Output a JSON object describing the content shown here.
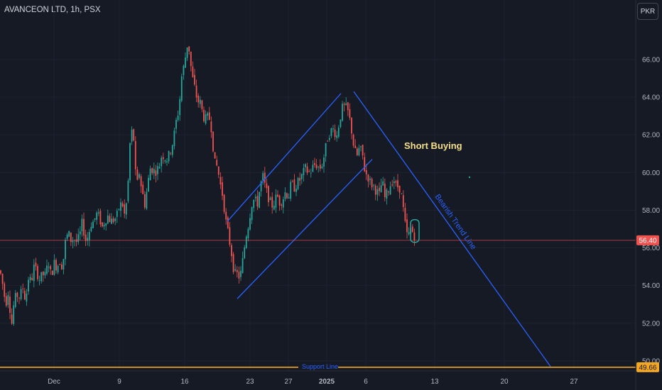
{
  "header": {
    "title": "AVANCEON LTD, 1h, PSX",
    "currency_button": "PKR"
  },
  "annotations": {
    "short_buying": "Short Buying",
    "bearish_trend_line": "Bearish Trend Line",
    "support_line": "Support Line"
  },
  "price_badges": {
    "last_price": "56.40",
    "support_price": "49.66"
  },
  "colors": {
    "background": "#161a25",
    "up": "#26a69a",
    "down": "#ef5350",
    "trend": "#2962ff",
    "support": "#f5a623",
    "text_yellow": "#f5e08a"
  },
  "chart_data": {
    "type": "candlestick",
    "symbol": "AVANCEON LTD",
    "interval": "1h",
    "exchange": "PSX",
    "currency": "PKR",
    "ylim": [
      49.3,
      68.5
    ],
    "y_ticks": [
      50,
      52,
      54,
      56,
      58,
      60,
      62,
      64,
      66
    ],
    "y_tick_labels": [
      "50.00",
      "52.00",
      "54.00",
      "56.00",
      "58.00",
      "60.00",
      "62.00",
      "64.00",
      "66.00"
    ],
    "x_tick_labels": [
      "Dec",
      "9",
      "16",
      "23",
      "27",
      "2025",
      "6",
      "13",
      "20",
      "27"
    ],
    "last_price": 56.4,
    "support_level": 49.66,
    "price_path": [
      [
        0,
        54.8
      ],
      [
        4,
        54.0
      ],
      [
        8,
        53.0
      ],
      [
        12,
        53.8
      ],
      [
        16,
        51.8
      ],
      [
        20,
        53.2
      ],
      [
        24,
        53.5
      ],
      [
        28,
        53.4
      ],
      [
        32,
        53.9
      ],
      [
        36,
        53.2
      ],
      [
        40,
        54.4
      ],
      [
        44,
        54.2
      ],
      [
        48,
        55.0
      ],
      [
        52,
        54.7
      ],
      [
        56,
        54.3
      ],
      [
        60,
        54.6
      ],
      [
        64,
        54.5
      ],
      [
        68,
        55.3
      ],
      [
        72,
        54.5
      ],
      [
        76,
        55.2
      ],
      [
        80,
        55.0
      ],
      [
        84,
        55.3
      ],
      [
        88,
        55.0
      ],
      [
        92,
        56.3
      ],
      [
        96,
        56.8
      ],
      [
        100,
        56.4
      ],
      [
        104,
        56.5
      ],
      [
        108,
        56.3
      ],
      [
        112,
        56.6
      ],
      [
        116,
        57.4
      ],
      [
        120,
        56.4
      ],
      [
        124,
        56.6
      ],
      [
        128,
        57.3
      ],
      [
        132,
        57.4
      ],
      [
        136,
        57.8
      ],
      [
        140,
        57.6
      ],
      [
        144,
        57.1
      ],
      [
        148,
        57.5
      ],
      [
        152,
        57.7
      ],
      [
        156,
        57.4
      ],
      [
        160,
        57.5
      ],
      [
        164,
        57.6
      ],
      [
        168,
        58.2
      ],
      [
        172,
        58.4
      ],
      [
        176,
        57.6
      ],
      [
        180,
        59.2
      ],
      [
        184,
        62.3
      ],
      [
        188,
        61.9
      ],
      [
        192,
        59.1
      ],
      [
        196,
        60.0
      ],
      [
        200,
        59.0
      ],
      [
        204,
        58.3
      ],
      [
        208,
        59.4
      ],
      [
        212,
        60.3
      ],
      [
        216,
        60.1
      ],
      [
        220,
        60.1
      ],
      [
        224,
        60.3
      ],
      [
        228,
        61.0
      ],
      [
        232,
        60.8
      ],
      [
        236,
        60.7
      ],
      [
        240,
        61.2
      ],
      [
        244,
        61.7
      ],
      [
        248,
        62.7
      ],
      [
        252,
        63.4
      ],
      [
        256,
        65.2
      ],
      [
        260,
        65.8
      ],
      [
        263,
        66.8
      ],
      [
        266,
        66.6
      ],
      [
        270,
        65.2
      ],
      [
        274,
        64.5
      ],
      [
        278,
        63.8
      ],
      [
        282,
        63.7
      ],
      [
        286,
        63.0
      ],
      [
        290,
        62.8
      ],
      [
        294,
        63.0
      ],
      [
        298,
        62.3
      ],
      [
        302,
        60.5
      ],
      [
        306,
        60.3
      ],
      [
        310,
        59.4
      ],
      [
        314,
        58.7
      ],
      [
        318,
        57.4
      ],
      [
        322,
        56.6
      ],
      [
        326,
        55.7
      ],
      [
        330,
        54.6
      ],
      [
        334,
        54.6
      ],
      [
        338,
        54.4
      ],
      [
        342,
        55.4
      ],
      [
        346,
        56.6
      ],
      [
        350,
        57.3
      ],
      [
        354,
        58.3
      ],
      [
        358,
        58.6
      ],
      [
        362,
        58.3
      ],
      [
        366,
        59.2
      ],
      [
        370,
        59.8
      ],
      [
        374,
        59.1
      ],
      [
        378,
        58.7
      ],
      [
        382,
        58.2
      ],
      [
        386,
        58.4
      ],
      [
        390,
        58.8
      ],
      [
        394,
        58.4
      ],
      [
        398,
        58.6
      ],
      [
        402,
        59.0
      ],
      [
        406,
        58.7
      ],
      [
        410,
        59.4
      ],
      [
        414,
        59.2
      ],
      [
        418,
        59.4
      ],
      [
        422,
        59.6
      ],
      [
        426,
        59.9
      ],
      [
        430,
        60.2
      ],
      [
        434,
        60.0
      ],
      [
        438,
        60.1
      ],
      [
        442,
        60.4
      ],
      [
        446,
        60.4
      ],
      [
        450,
        60.2
      ],
      [
        454,
        60.5
      ],
      [
        458,
        61.2
      ],
      [
        462,
        62.0
      ],
      [
        466,
        62.2
      ],
      [
        470,
        62.3
      ],
      [
        474,
        61.9
      ],
      [
        478,
        62.8
      ],
      [
        482,
        63.4
      ],
      [
        486,
        63.5
      ],
      [
        490,
        63.2
      ],
      [
        494,
        62.5
      ],
      [
        498,
        61.4
      ],
      [
        502,
        60.8
      ],
      [
        506,
        61.3
      ],
      [
        510,
        61.0
      ],
      [
        514,
        60.0
      ],
      [
        518,
        59.8
      ],
      [
        522,
        59.4
      ],
      [
        526,
        59.3
      ],
      [
        530,
        59.0
      ],
      [
        534,
        58.8
      ],
      [
        538,
        59.6
      ],
      [
        542,
        58.6
      ],
      [
        546,
        59.0
      ],
      [
        550,
        59.4
      ],
      [
        554,
        59.7
      ],
      [
        558,
        59.2
      ],
      [
        562,
        59.3
      ],
      [
        566,
        58.6
      ],
      [
        570,
        57.3
      ],
      [
        574,
        56.5
      ],
      [
        578,
        57.0
      ],
      [
        582,
        56.8
      ],
      [
        586,
        56.4
      ]
    ],
    "drawings": [
      {
        "name": "channel-upper-line",
        "points": [
          [
            320,
            57.4
          ],
          [
            480,
            64.2
          ]
        ]
      },
      {
        "name": "channel-lower-line",
        "points": [
          [
            334,
            53.3
          ],
          [
            524,
            60.7
          ]
        ]
      },
      {
        "name": "bearish-trend-line",
        "points": [
          [
            498,
            64.3
          ],
          [
            775,
            49.7
          ]
        ]
      }
    ]
  }
}
